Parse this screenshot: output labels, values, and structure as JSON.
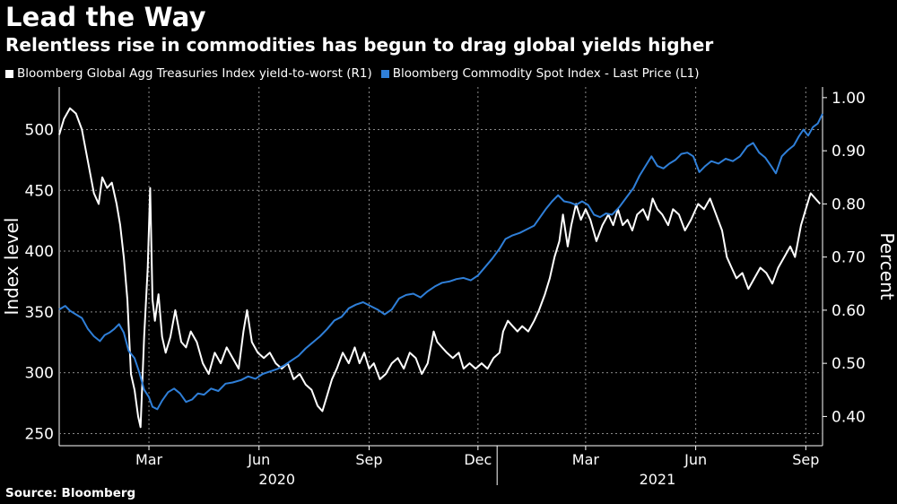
{
  "header": {
    "title": "Lead the Way",
    "subtitle": "Relentless rise in commodities has begun to drag global yields higher"
  },
  "footer": {
    "source": "Source: Bloomberg"
  },
  "colors": {
    "background": "#000000",
    "series_yield": "#ffffff",
    "series_commodity": "#2f7fd8",
    "grid": "#8a8a8a"
  },
  "chart_data": {
    "type": "line",
    "legend": {
      "placement": "top-left"
    },
    "grid": true,
    "x_axis": {
      "tick_labels": [
        "Mar",
        "Jun",
        "Sep",
        "Dec",
        "Mar",
        "Jun",
        "Sep"
      ],
      "year_labels": [
        "2020",
        "2021"
      ],
      "range": [
        "2020-01-01",
        "2021-09-30"
      ]
    },
    "y_left": {
      "label": "Index level",
      "ticks": [
        250,
        300,
        350,
        400,
        450,
        500
      ],
      "range": [
        240,
        535
      ]
    },
    "y_right": {
      "label": "Percent",
      "ticks": [
        "0.40",
        "0.50",
        "0.60",
        "0.70",
        "0.80",
        "0.90",
        "1.00"
      ],
      "range": [
        0.345,
        1.02
      ]
    },
    "series": [
      {
        "name": "Bloomberg Global Agg Treasuries Index yield-to-worst (R1)",
        "axis": "right",
        "color": "#ffffff",
        "points": [
          [
            "2020-01-01",
            0.93
          ],
          [
            "2020-01-05",
            0.96
          ],
          [
            "2020-01-10",
            0.98
          ],
          [
            "2020-01-15",
            0.97
          ],
          [
            "2020-01-20",
            0.94
          ],
          [
            "2020-01-25",
            0.88
          ],
          [
            "2020-01-30",
            0.82
          ],
          [
            "2020-02-03",
            0.8
          ],
          [
            "2020-02-06",
            0.85
          ],
          [
            "2020-02-10",
            0.83
          ],
          [
            "2020-02-14",
            0.84
          ],
          [
            "2020-02-18",
            0.8
          ],
          [
            "2020-02-21",
            0.76
          ],
          [
            "2020-02-24",
            0.7
          ],
          [
            "2020-02-27",
            0.62
          ],
          [
            "2020-03-01",
            0.48
          ],
          [
            "2020-03-04",
            0.45
          ],
          [
            "2020-03-07",
            0.4
          ],
          [
            "2020-03-09",
            0.38
          ],
          [
            "2020-03-12",
            0.55
          ],
          [
            "2020-03-15",
            0.68
          ],
          [
            "2020-03-17",
            0.83
          ],
          [
            "2020-03-19",
            0.62
          ],
          [
            "2020-03-21",
            0.58
          ],
          [
            "2020-03-24",
            0.63
          ],
          [
            "2020-03-27",
            0.55
          ],
          [
            "2020-03-30",
            0.52
          ],
          [
            "2020-04-03",
            0.55
          ],
          [
            "2020-04-07",
            0.6
          ],
          [
            "2020-04-12",
            0.54
          ],
          [
            "2020-04-16",
            0.53
          ],
          [
            "2020-04-20",
            0.56
          ],
          [
            "2020-04-25",
            0.54
          ],
          [
            "2020-04-30",
            0.5
          ],
          [
            "2020-05-05",
            0.48
          ],
          [
            "2020-05-10",
            0.52
          ],
          [
            "2020-05-15",
            0.5
          ],
          [
            "2020-05-20",
            0.53
          ],
          [
            "2020-05-25",
            0.51
          ],
          [
            "2020-05-30",
            0.49
          ],
          [
            "2020-06-03",
            0.56
          ],
          [
            "2020-06-06",
            0.6
          ],
          [
            "2020-06-10",
            0.54
          ],
          [
            "2020-06-15",
            0.52
          ],
          [
            "2020-06-20",
            0.51
          ],
          [
            "2020-06-25",
            0.52
          ],
          [
            "2020-06-30",
            0.5
          ],
          [
            "2020-07-05",
            0.49
          ],
          [
            "2020-07-10",
            0.5
          ],
          [
            "2020-07-15",
            0.47
          ],
          [
            "2020-07-20",
            0.48
          ],
          [
            "2020-07-25",
            0.46
          ],
          [
            "2020-07-30",
            0.45
          ],
          [
            "2020-08-04",
            0.42
          ],
          [
            "2020-08-08",
            0.41
          ],
          [
            "2020-08-12",
            0.44
          ],
          [
            "2020-08-16",
            0.47
          ],
          [
            "2020-08-20",
            0.49
          ],
          [
            "2020-08-25",
            0.52
          ],
          [
            "2020-08-30",
            0.5
          ],
          [
            "2020-09-04",
            0.53
          ],
          [
            "2020-09-08",
            0.5
          ],
          [
            "2020-09-12",
            0.52
          ],
          [
            "2020-09-16",
            0.49
          ],
          [
            "2020-09-20",
            0.5
          ],
          [
            "2020-09-25",
            0.47
          ],
          [
            "2020-09-30",
            0.48
          ],
          [
            "2020-10-05",
            0.5
          ],
          [
            "2020-10-10",
            0.51
          ],
          [
            "2020-10-15",
            0.49
          ],
          [
            "2020-10-20",
            0.52
          ],
          [
            "2020-10-25",
            0.51
          ],
          [
            "2020-10-30",
            0.48
          ],
          [
            "2020-11-04",
            0.5
          ],
          [
            "2020-11-09",
            0.56
          ],
          [
            "2020-11-12",
            0.54
          ],
          [
            "2020-11-16",
            0.53
          ],
          [
            "2020-11-20",
            0.52
          ],
          [
            "2020-11-25",
            0.51
          ],
          [
            "2020-11-30",
            0.52
          ],
          [
            "2020-12-04",
            0.49
          ],
          [
            "2020-12-09",
            0.5
          ],
          [
            "2020-12-14",
            0.49
          ],
          [
            "2020-12-19",
            0.5
          ],
          [
            "2020-12-24",
            0.49
          ],
          [
            "2020-12-29",
            0.51
          ],
          [
            "2021-01-03",
            0.52
          ],
          [
            "2021-01-06",
            0.56
          ],
          [
            "2021-01-10",
            0.58
          ],
          [
            "2021-01-14",
            0.57
          ],
          [
            "2021-01-18",
            0.56
          ],
          [
            "2021-01-22",
            0.57
          ],
          [
            "2021-01-27",
            0.56
          ],
          [
            "2021-02-01",
            0.58
          ],
          [
            "2021-02-05",
            0.6
          ],
          [
            "2021-02-10",
            0.63
          ],
          [
            "2021-02-14",
            0.66
          ],
          [
            "2021-02-18",
            0.7
          ],
          [
            "2021-02-22",
            0.73
          ],
          [
            "2021-02-25",
            0.78
          ],
          [
            "2021-03-01",
            0.72
          ],
          [
            "2021-03-04",
            0.76
          ],
          [
            "2021-03-08",
            0.8
          ],
          [
            "2021-03-12",
            0.77
          ],
          [
            "2021-03-16",
            0.79
          ],
          [
            "2021-03-20",
            0.77
          ],
          [
            "2021-03-25",
            0.73
          ],
          [
            "2021-03-30",
            0.76
          ],
          [
            "2021-04-04",
            0.78
          ],
          [
            "2021-04-08",
            0.76
          ],
          [
            "2021-04-12",
            0.79
          ],
          [
            "2021-04-16",
            0.76
          ],
          [
            "2021-04-20",
            0.77
          ],
          [
            "2021-04-24",
            0.75
          ],
          [
            "2021-04-28",
            0.78
          ],
          [
            "2021-05-03",
            0.79
          ],
          [
            "2021-05-07",
            0.77
          ],
          [
            "2021-05-11",
            0.81
          ],
          [
            "2021-05-15",
            0.79
          ],
          [
            "2021-05-19",
            0.78
          ],
          [
            "2021-05-24",
            0.76
          ],
          [
            "2021-05-28",
            0.79
          ],
          [
            "2021-06-02",
            0.78
          ],
          [
            "2021-06-07",
            0.75
          ],
          [
            "2021-06-12",
            0.77
          ],
          [
            "2021-06-18",
            0.8
          ],
          [
            "2021-06-23",
            0.79
          ],
          [
            "2021-06-28",
            0.81
          ],
          [
            "2021-07-03",
            0.78
          ],
          [
            "2021-07-08",
            0.75
          ],
          [
            "2021-07-12",
            0.7
          ],
          [
            "2021-07-16",
            0.68
          ],
          [
            "2021-07-20",
            0.66
          ],
          [
            "2021-07-25",
            0.67
          ],
          [
            "2021-07-30",
            0.64
          ],
          [
            "2021-08-04",
            0.66
          ],
          [
            "2021-08-09",
            0.68
          ],
          [
            "2021-08-14",
            0.67
          ],
          [
            "2021-08-19",
            0.65
          ],
          [
            "2021-08-24",
            0.68
          ],
          [
            "2021-08-29",
            0.7
          ],
          [
            "2021-09-03",
            0.72
          ],
          [
            "2021-09-07",
            0.7
          ],
          [
            "2021-09-12",
            0.76
          ],
          [
            "2021-09-16",
            0.79
          ],
          [
            "2021-09-20",
            0.82
          ],
          [
            "2021-09-24",
            0.81
          ],
          [
            "2021-09-28",
            0.8
          ]
        ]
      },
      {
        "name": "Bloomberg Commodity Spot Index - Last Price (L1)",
        "axis": "left",
        "color": "#2f7fd8",
        "points": [
          [
            "2020-01-01",
            352
          ],
          [
            "2020-01-06",
            355
          ],
          [
            "2020-01-10",
            351
          ],
          [
            "2020-01-15",
            348
          ],
          [
            "2020-01-20",
            345
          ],
          [
            "2020-01-25",
            336
          ],
          [
            "2020-01-30",
            330
          ],
          [
            "2020-02-04",
            326
          ],
          [
            "2020-02-08",
            331
          ],
          [
            "2020-02-12",
            333
          ],
          [
            "2020-02-16",
            336
          ],
          [
            "2020-02-20",
            340
          ],
          [
            "2020-02-24",
            333
          ],
          [
            "2020-02-28",
            318
          ],
          [
            "2020-03-04",
            312
          ],
          [
            "2020-03-08",
            300
          ],
          [
            "2020-03-12",
            286
          ],
          [
            "2020-03-16",
            280
          ],
          [
            "2020-03-19",
            272
          ],
          [
            "2020-03-23",
            270
          ],
          [
            "2020-03-27",
            277
          ],
          [
            "2020-04-01",
            284
          ],
          [
            "2020-04-06",
            287
          ],
          [
            "2020-04-11",
            283
          ],
          [
            "2020-04-16",
            276
          ],
          [
            "2020-04-21",
            278
          ],
          [
            "2020-04-26",
            283
          ],
          [
            "2020-05-01",
            282
          ],
          [
            "2020-05-07",
            287
          ],
          [
            "2020-05-13",
            285
          ],
          [
            "2020-05-19",
            291
          ],
          [
            "2020-05-25",
            292
          ],
          [
            "2020-06-01",
            294
          ],
          [
            "2020-06-07",
            297
          ],
          [
            "2020-06-13",
            295
          ],
          [
            "2020-06-19",
            299
          ],
          [
            "2020-06-25",
            301
          ],
          [
            "2020-07-01",
            303
          ],
          [
            "2020-07-07",
            306
          ],
          [
            "2020-07-13",
            310
          ],
          [
            "2020-07-19",
            314
          ],
          [
            "2020-07-25",
            320
          ],
          [
            "2020-07-31",
            325
          ],
          [
            "2020-08-06",
            330
          ],
          [
            "2020-08-12",
            336
          ],
          [
            "2020-08-18",
            343
          ],
          [
            "2020-08-24",
            346
          ],
          [
            "2020-08-30",
            353
          ],
          [
            "2020-09-05",
            356
          ],
          [
            "2020-09-11",
            358
          ],
          [
            "2020-09-17",
            355
          ],
          [
            "2020-09-23",
            352
          ],
          [
            "2020-09-29",
            348
          ],
          [
            "2020-10-05",
            352
          ],
          [
            "2020-10-11",
            361
          ],
          [
            "2020-10-17",
            364
          ],
          [
            "2020-10-23",
            365
          ],
          [
            "2020-10-29",
            362
          ],
          [
            "2020-11-04",
            367
          ],
          [
            "2020-11-10",
            371
          ],
          [
            "2020-11-16",
            374
          ],
          [
            "2020-11-22",
            375
          ],
          [
            "2020-11-28",
            377
          ],
          [
            "2020-12-04",
            378
          ],
          [
            "2020-12-10",
            376
          ],
          [
            "2020-12-16",
            380
          ],
          [
            "2020-12-22",
            387
          ],
          [
            "2020-12-28",
            394
          ],
          [
            "2021-01-03",
            402
          ],
          [
            "2021-01-08",
            410
          ],
          [
            "2021-01-14",
            413
          ],
          [
            "2021-01-20",
            415
          ],
          [
            "2021-01-26",
            418
          ],
          [
            "2021-02-01",
            421
          ],
          [
            "2021-02-06",
            428
          ],
          [
            "2021-02-11",
            435
          ],
          [
            "2021-02-16",
            441
          ],
          [
            "2021-02-21",
            446
          ],
          [
            "2021-02-26",
            441
          ],
          [
            "2021-03-03",
            440
          ],
          [
            "2021-03-08",
            438
          ],
          [
            "2021-03-13",
            441
          ],
          [
            "2021-03-18",
            438
          ],
          [
            "2021-03-23",
            430
          ],
          [
            "2021-03-28",
            428
          ],
          [
            "2021-04-02",
            431
          ],
          [
            "2021-04-07",
            430
          ],
          [
            "2021-04-13",
            436
          ],
          [
            "2021-04-19",
            444
          ],
          [
            "2021-04-25",
            452
          ],
          [
            "2021-04-30",
            462
          ],
          [
            "2021-05-05",
            470
          ],
          [
            "2021-05-10",
            478
          ],
          [
            "2021-05-15",
            470
          ],
          [
            "2021-05-20",
            468
          ],
          [
            "2021-05-25",
            472
          ],
          [
            "2021-05-30",
            475
          ],
          [
            "2021-06-04",
            480
          ],
          [
            "2021-06-09",
            481
          ],
          [
            "2021-06-14",
            478
          ],
          [
            "2021-06-19",
            465
          ],
          [
            "2021-06-24",
            470
          ],
          [
            "2021-06-29",
            474
          ],
          [
            "2021-07-05",
            472
          ],
          [
            "2021-07-11",
            476
          ],
          [
            "2021-07-17",
            474
          ],
          [
            "2021-07-23",
            478
          ],
          [
            "2021-07-29",
            486
          ],
          [
            "2021-08-03",
            489
          ],
          [
            "2021-08-08",
            481
          ],
          [
            "2021-08-13",
            477
          ],
          [
            "2021-08-18",
            470
          ],
          [
            "2021-08-22",
            464
          ],
          [
            "2021-08-27",
            478
          ],
          [
            "2021-09-01",
            483
          ],
          [
            "2021-09-06",
            487
          ],
          [
            "2021-09-10",
            494
          ],
          [
            "2021-09-14",
            500
          ],
          [
            "2021-09-18",
            495
          ],
          [
            "2021-09-22",
            502
          ],
          [
            "2021-09-26",
            505
          ],
          [
            "2021-09-30",
            513
          ]
        ]
      }
    ]
  }
}
